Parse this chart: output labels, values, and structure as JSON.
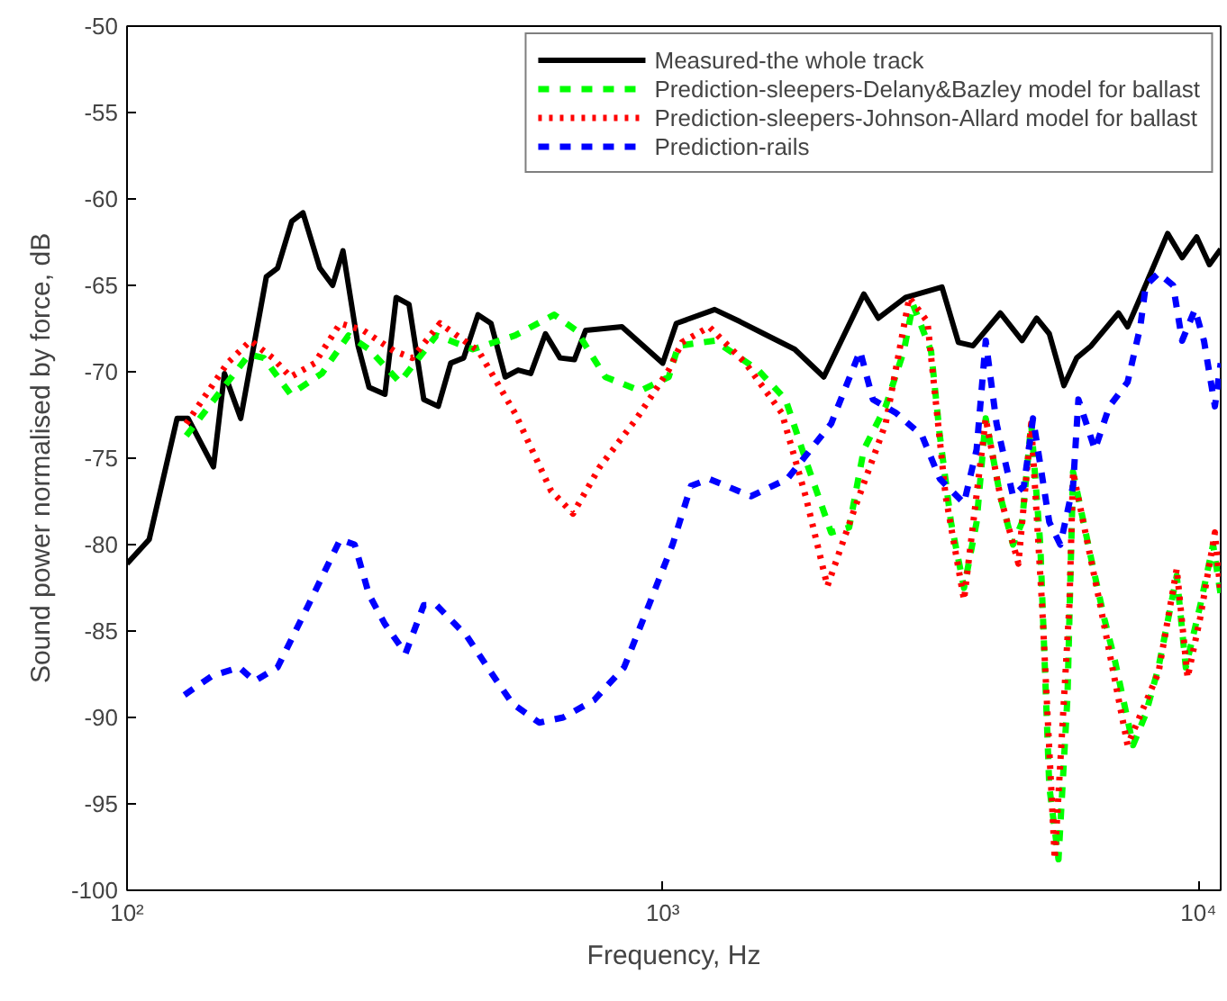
{
  "chart_data": {
    "type": "line",
    "xlabel": "Frequency, Hz",
    "ylabel": "Sound power normalised by force, dB",
    "log": "x",
    "xlim": [
      100,
      11000
    ],
    "ylim": [
      -100,
      -50
    ],
    "xticks": [
      {
        "value": 100,
        "label": "10²"
      },
      {
        "value": 1000,
        "label": "10³"
      },
      {
        "value": 10000,
        "label": "10⁴"
      }
    ],
    "yticks": [
      -100,
      -95,
      -90,
      -85,
      -80,
      -75,
      -70,
      -65,
      -60,
      -55,
      -50
    ],
    "grid": false,
    "legend": "top right",
    "marker": "none",
    "series": [
      {
        "name": "Measured-the whole track",
        "color": "#000000",
        "line_style": "solid",
        "x": [
          100,
          110,
          124,
          130,
          145,
          152,
          163,
          182,
          191,
          203,
          213,
          229,
          242,
          253,
          270,
          283,
          303,
          318,
          336,
          358,
          381,
          402,
          425,
          452,
          478,
          508,
          537,
          567,
          604,
          643,
          684,
          718,
          839,
          1000,
          1060,
          1250,
          1394,
          1544,
          1763,
          1998,
          2373,
          2526,
          2840,
          3320,
          3563,
          3793,
          4266,
          4684,
          4987,
          5266,
          5608,
          5923,
          6303,
          7089,
          7372,
          7786,
          8757,
          9320,
          9922,
          10480,
          11000
        ],
        "values": [
          -81.1,
          -79.7,
          -72.7,
          -72.7,
          -75.5,
          -70.1,
          -72.7,
          -64.5,
          -64,
          -61.3,
          -60.8,
          -64,
          -65,
          -63,
          -68.5,
          -70.9,
          -71.3,
          -65.7,
          -66.1,
          -71.6,
          -72,
          -69.5,
          -69.2,
          -66.7,
          -67.2,
          -70.3,
          -69.9,
          -70.1,
          -67.8,
          -69.2,
          -69.3,
          -67.6,
          -67.4,
          -69.5,
          -67.2,
          -66.4,
          -67.1,
          -67.8,
          -68.7,
          -70.3,
          -65.5,
          -66.9,
          -65.7,
          -65.1,
          -68.3,
          -68.5,
          -66.6,
          -68.2,
          -66.9,
          -67.8,
          -70.8,
          -69.2,
          -68.5,
          -66.6,
          -67.4,
          -65.7,
          -62,
          -63.4,
          -62.2,
          -63.8,
          -62.9
        ]
      },
      {
        "name": "Prediction-sleepers-Delany&Bazley model for ballast",
        "color": "#00ff00",
        "line_style": "dashed",
        "x": [
          129,
          148,
          169,
          180,
          202,
          231,
          259,
          283,
          323,
          378,
          442,
          530,
          627,
          689,
          781,
          908,
          1026,
          1069,
          1250,
          1507,
          1695,
          1848,
          2062,
          2228,
          2373,
          2606,
          2818,
          2931,
          3168,
          3290,
          3451,
          3650,
          3853,
          4007,
          4266,
          4506,
          4684,
          4872,
          5066,
          5266,
          5478,
          5694,
          5832,
          6303,
          6660,
          6980,
          7548,
          7970,
          8420,
          9107,
          9468,
          10078,
          10646,
          11000
        ],
        "values": [
          -73.7,
          -71.3,
          -69,
          -69.2,
          -71.3,
          -70.1,
          -67.9,
          -68.7,
          -70.6,
          -67.9,
          -68.7,
          -67.9,
          -66.7,
          -67.6,
          -70.3,
          -71.1,
          -70.3,
          -68.5,
          -68.2,
          -69.9,
          -71.6,
          -75.1,
          -79.3,
          -79,
          -74.5,
          -72,
          -68.8,
          -66.1,
          -68.8,
          -73.7,
          -78.7,
          -82.5,
          -78.7,
          -72.7,
          -77.2,
          -80,
          -78.7,
          -73,
          -80,
          -94,
          -98.2,
          -88.8,
          -75.8,
          -80.8,
          -84.2,
          -86.7,
          -91.6,
          -89.8,
          -87.1,
          -81.8,
          -87.1,
          -83.5,
          -80,
          -82.9
        ]
      },
      {
        "name": "Prediction-sleepers-Johnson-Allard model for ballast",
        "color": "#ff0000",
        "line_style": "dotted",
        "x": [
          129,
          154,
          170,
          187,
          202,
          224,
          250,
          276,
          315,
          341,
          384,
          453,
          530,
          619,
          680,
          763,
          894,
          1026,
          1086,
          1221,
          1427,
          1669,
          1848,
          2029,
          2282,
          2606,
          2885,
          3119,
          3373,
          3650,
          4007,
          4266,
          4611,
          4872,
          5105,
          5391,
          5741,
          5832,
          6554,
          7372,
          8420,
          9107,
          9541,
          10078,
          10730,
          11000
        ],
        "values": [
          -73,
          -69.5,
          -68.2,
          -69.2,
          -70.3,
          -69.5,
          -67.2,
          -67.6,
          -68.8,
          -69.2,
          -67.2,
          -68.8,
          -72.4,
          -76.9,
          -78.2,
          -75.5,
          -72.7,
          -69.9,
          -68.3,
          -67.4,
          -69.5,
          -72.4,
          -77.2,
          -82.4,
          -77.9,
          -73,
          -65.7,
          -67.1,
          -77.2,
          -83.2,
          -72.7,
          -77.2,
          -81.1,
          -73,
          -83.5,
          -98.2,
          -83.5,
          -75.8,
          -83.5,
          -91.6,
          -87.4,
          -81.4,
          -87.7,
          -84.2,
          -79.3,
          -82.9
        ]
      },
      {
        "name": "Prediction-rails",
        "color": "#0000ff",
        "line_style": "dashed",
        "x": [
          128,
          144,
          162,
          173,
          191,
          218,
          250,
          266,
          283,
          303,
          331,
          358,
          378,
          431,
          478,
          524,
          588,
          652,
          744,
          847,
          942,
          1043,
          1129,
          1221,
          1461,
          1708,
          2062,
          2335,
          2467,
          2730,
          3048,
          3290,
          3650,
          3853,
          4007,
          4198,
          4506,
          4721,
          4910,
          5266,
          5521,
          5832,
          5968,
          6406,
          6817,
          7372,
          7786,
          7970,
          8420,
          8965,
          9320,
          9845,
          10237,
          10730,
          11000
        ],
        "values": [
          -88.7,
          -87.6,
          -87.1,
          -87.9,
          -87.1,
          -83.5,
          -79.7,
          -80,
          -82.9,
          -84.6,
          -86.3,
          -83.5,
          -83.5,
          -85.3,
          -87.4,
          -89.2,
          -90.3,
          -90,
          -89,
          -87.1,
          -83.5,
          -80,
          -76.6,
          -76.2,
          -77.2,
          -76.2,
          -73,
          -68.8,
          -71.6,
          -72.4,
          -73.7,
          -76.2,
          -77.6,
          -74.5,
          -68.2,
          -73,
          -77.2,
          -76.6,
          -72.7,
          -78.7,
          -80,
          -76.6,
          -71.6,
          -74.5,
          -72,
          -70.6,
          -67.4,
          -65,
          -64.3,
          -65,
          -68.2,
          -66.4,
          -68.2,
          -72,
          -69.5
        ]
      }
    ]
  }
}
